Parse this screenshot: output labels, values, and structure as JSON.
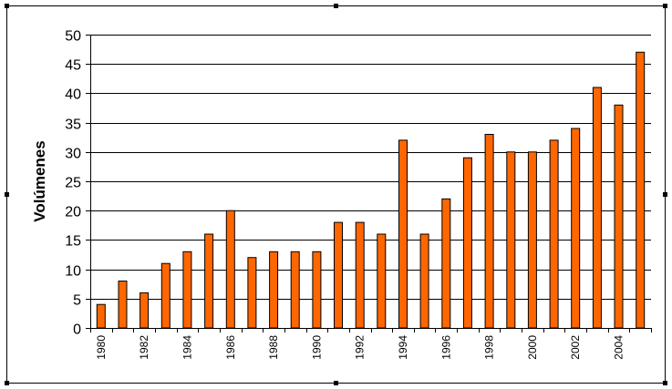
{
  "chart_data": {
    "type": "bar",
    "title": "",
    "xlabel": "",
    "ylabel": "Volúmenes",
    "ylim": [
      0,
      50
    ],
    "yticks": [
      0,
      5,
      10,
      15,
      20,
      25,
      30,
      35,
      40,
      45,
      50
    ],
    "categories": [
      "1980",
      "1981",
      "1982",
      "1983",
      "1984",
      "1985",
      "1986",
      "1987",
      "1988",
      "1989",
      "1990",
      "1991",
      "1992",
      "1993",
      "1994",
      "1995",
      "1996",
      "1997",
      "1998",
      "1999",
      "2000",
      "2001",
      "2002",
      "2003",
      "2004",
      "2005"
    ],
    "xtick_labels": [
      "1980",
      "",
      "1982",
      "",
      "1984",
      "",
      "1986",
      "",
      "1988",
      "",
      "1990",
      "",
      "1992",
      "",
      "1994",
      "",
      "1996",
      "",
      "1998",
      "",
      "2000",
      "",
      "2002",
      "",
      "2004",
      ""
    ],
    "values": [
      4,
      8,
      6,
      11,
      13,
      16,
      20,
      12,
      13,
      13,
      13,
      18,
      18,
      16,
      32,
      16,
      22,
      29,
      33,
      30,
      30,
      32,
      34,
      41,
      38,
      47
    ],
    "grid": true,
    "legend": "none",
    "colors": {
      "bar_fill": "#ff6600",
      "bar_stroke": "#000000",
      "grid": "#000000"
    }
  }
}
